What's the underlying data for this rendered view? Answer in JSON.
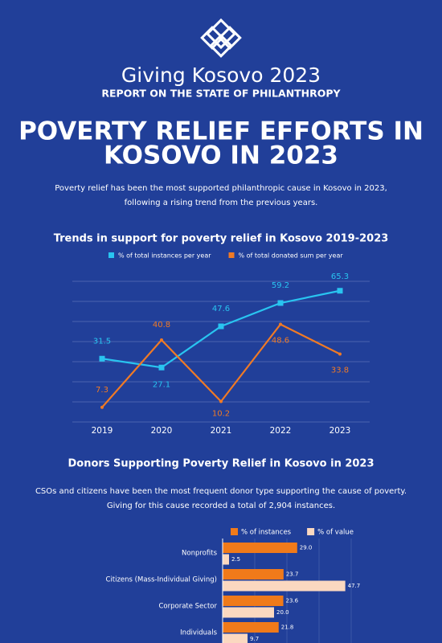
{
  "header": {
    "title": "Giving Kosovo 2023",
    "subtitle": "REPORT ON THE STATE OF PHILANTHROPY"
  },
  "headline": [
    "POVERTY RELIEF EFFORTS IN",
    "KOSOVO IN 2023"
  ],
  "intro": [
    "Poverty relief has been the most supported philanthropic cause in Kosovo in 2023,",
    "following a rising trend from the previous years."
  ],
  "chart_data": [
    {
      "type": "line",
      "title": "Trends in support for poverty relief in Kosovo 2019-2023",
      "categories": [
        "2019",
        "2020",
        "2021",
        "2022",
        "2023"
      ],
      "series": [
        {
          "name": "% of total instances per year",
          "color": "#29c4f0",
          "marker": "square",
          "values": [
            31.5,
            27.1,
            47.6,
            59.2,
            65.3
          ]
        },
        {
          "name": "% of total donated sum per year",
          "color": "#f07a25",
          "values": [
            7.3,
            40.8,
            10.2,
            48.6,
            33.8
          ]
        }
      ],
      "ylim": [
        0,
        70
      ],
      "yticks": [
        0,
        10,
        20,
        30,
        40,
        50,
        60,
        70
      ],
      "grid": true,
      "legend": "top"
    },
    {
      "type": "hbar",
      "title": "Donors Supporting Poverty Relief in Kosovo in 2023",
      "description": [
        "CSOs and citizens have been the most frequent donor type supporting the cause of poverty.",
        "Giving for this cause recorded a total of 2,904 instances."
      ],
      "categories": [
        "Nonprofits",
        "Citizens (Mass-Individual Giving)",
        "Corporate Sector",
        "Individuals"
      ],
      "series": [
        {
          "name": "% of instances",
          "color": "#f07a1a",
          "values": [
            29.0,
            23.7,
            23.6,
            21.8
          ],
          "value_labels": [
            "29.0",
            "23.7",
            "23.6",
            "21.8"
          ]
        },
        {
          "name": "% of value",
          "color": "#fbd8c0",
          "values": [
            2.5,
            47.7,
            20.0,
            9.7
          ],
          "value_labels": [
            "2.5",
            "47.7",
            "20.0",
            "9.7"
          ]
        }
      ],
      "xlim": [
        0,
        50
      ],
      "legend": "top"
    }
  ]
}
